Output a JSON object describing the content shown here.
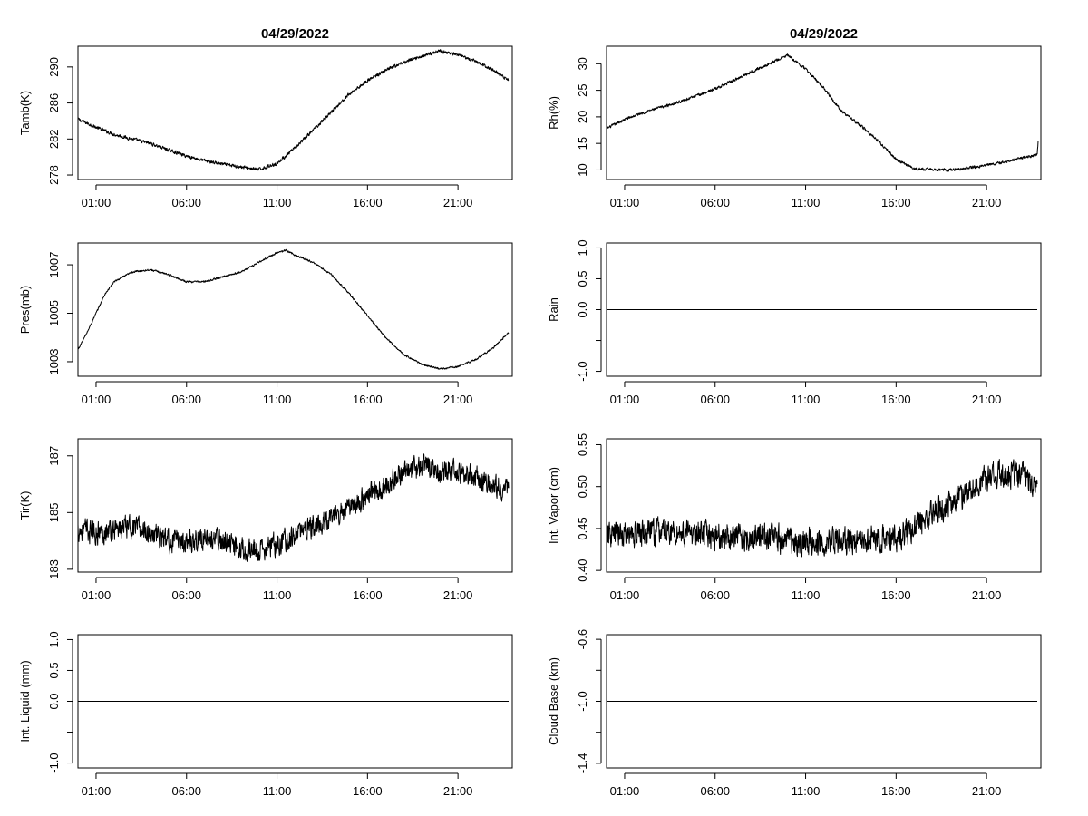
{
  "page": {
    "date_left": "04/29/2022",
    "date_right": "04/29/2022"
  },
  "colors": {
    "line": "#000000",
    "background": "#ffffff"
  },
  "chart_data": [
    {
      "id": "tamb",
      "type": "line",
      "title": "04/29/2022",
      "ylabel": "Tamb(K)",
      "xlabel": "",
      "xlim": [
        0,
        24
      ],
      "ylim": [
        277.5,
        292.3
      ],
      "x_ticks": [
        1,
        6,
        11,
        16,
        21
      ],
      "x_tick_labels": [
        "01:00",
        "06:00",
        "11:00",
        "16:00",
        "21:00"
      ],
      "y_ticks": [
        278,
        282,
        286,
        290
      ],
      "y_tick_labels": [
        "278",
        "282",
        "286",
        "290"
      ],
      "noise": 0.25,
      "series": [
        {
          "name": "Tamb(K)",
          "x": [
            0,
            1,
            2,
            3,
            4,
            5,
            6,
            7,
            8,
            9,
            10,
            11,
            12,
            13,
            14,
            15,
            16,
            17,
            18,
            19,
            20,
            21,
            22,
            23,
            23.8
          ],
          "values": [
            284.2,
            283.3,
            282.5,
            282.0,
            281.5,
            280.8,
            280.1,
            279.6,
            279.2,
            278.9,
            278.6,
            279.3,
            281.0,
            283.0,
            285.0,
            287.0,
            288.5,
            289.6,
            290.5,
            291.2,
            291.8,
            291.3,
            290.6,
            289.6,
            288.5
          ]
        }
      ]
    },
    {
      "id": "rh",
      "type": "line",
      "title": "04/29/2022",
      "ylabel": "Rh(%)",
      "xlabel": "",
      "xlim": [
        0,
        24
      ],
      "ylim": [
        8.2,
        33.3
      ],
      "x_ticks": [
        1,
        6,
        11,
        16,
        21
      ],
      "x_tick_labels": [
        "01:00",
        "06:00",
        "11:00",
        "16:00",
        "21:00"
      ],
      "y_ticks": [
        10,
        15,
        20,
        25,
        30
      ],
      "y_tick_labels": [
        "10",
        "15",
        "20",
        "25",
        "30"
      ],
      "noise": 0.35,
      "series": [
        {
          "name": "Rh(%)",
          "x": [
            0,
            1,
            2,
            3,
            4,
            5,
            6,
            7,
            8,
            9,
            10,
            11,
            12,
            13,
            14,
            15,
            16,
            17,
            18,
            19,
            20,
            21,
            22,
            23,
            23.8,
            23.85
          ],
          "values": [
            17.8,
            19.5,
            20.8,
            21.8,
            22.8,
            24.0,
            25.3,
            26.8,
            28.5,
            30.0,
            31.6,
            29.0,
            25.5,
            21.0,
            18.5,
            15.5,
            12.0,
            10.2,
            10.1,
            10.0,
            10.4,
            10.9,
            11.5,
            12.3,
            12.8,
            15.5
          ]
        }
      ]
    },
    {
      "id": "pres",
      "type": "line",
      "title": "",
      "ylabel": "Pres(mb)",
      "xlabel": "",
      "xlim": [
        0,
        24
      ],
      "ylim": [
        1002.4,
        1007.9
      ],
      "x_ticks": [
        1,
        6,
        11,
        16,
        21
      ],
      "x_tick_labels": [
        "01:00",
        "06:00",
        "11:00",
        "16:00",
        "21:00"
      ],
      "y_ticks": [
        1003,
        1005,
        1007
      ],
      "y_tick_labels": [
        "1003",
        "1005",
        "1007"
      ],
      "noise": 0.05,
      "series": [
        {
          "name": "Pres(mb)",
          "x": [
            0,
            0.5,
            1,
            1.5,
            2,
            3,
            4,
            5,
            6,
            7,
            8,
            9,
            10,
            11,
            11.5,
            12,
            13,
            14,
            15,
            16,
            17,
            18,
            19,
            20,
            21,
            22,
            23,
            23.8
          ],
          "values": [
            1003.5,
            1004.2,
            1005.0,
            1005.8,
            1006.3,
            1006.7,
            1006.8,
            1006.6,
            1006.3,
            1006.3,
            1006.5,
            1006.7,
            1007.1,
            1007.5,
            1007.6,
            1007.4,
            1007.1,
            1006.6,
            1005.8,
            1004.9,
            1004.0,
            1003.3,
            1002.9,
            1002.7,
            1002.8,
            1003.1,
            1003.6,
            1004.2
          ]
        }
      ]
    },
    {
      "id": "rain",
      "type": "line",
      "title": "",
      "ylabel": "Rain",
      "xlabel": "",
      "xlim": [
        0,
        24
      ],
      "ylim": [
        -1.08,
        1.08
      ],
      "x_ticks": [
        1,
        6,
        11,
        16,
        21
      ],
      "x_tick_labels": [
        "01:00",
        "06:00",
        "11:00",
        "16:00",
        "21:00"
      ],
      "y_ticks": [
        -1.0,
        -0.5,
        0.0,
        0.5,
        1.0
      ],
      "y_tick_labels": [
        "-1.0",
        "",
        "0.0",
        "0.5",
        "1.0"
      ],
      "noise": 0,
      "series": [
        {
          "name": "Rain",
          "x": [
            0,
            23.8
          ],
          "values": [
            0,
            0
          ]
        }
      ]
    },
    {
      "id": "tir",
      "type": "line",
      "title": "",
      "ylabel": "Tir(K)",
      "xlabel": "",
      "xlim": [
        0,
        24
      ],
      "ylim": [
        182.9,
        187.6
      ],
      "x_ticks": [
        1,
        6,
        11,
        16,
        21
      ],
      "x_tick_labels": [
        "01:00",
        "06:00",
        "11:00",
        "16:00",
        "21:00"
      ],
      "y_ticks": [
        183,
        185,
        187
      ],
      "y_tick_labels": [
        "183",
        "185",
        "187"
      ],
      "noise": 0.55,
      "series": [
        {
          "name": "Tir(K)",
          "x": [
            0,
            1,
            2,
            3,
            4,
            5,
            6,
            7,
            8,
            9,
            10,
            11,
            12,
            13,
            14,
            15,
            16,
            17,
            18,
            19,
            20,
            21,
            22,
            23,
            23.8
          ],
          "values": [
            184.4,
            184.3,
            184.4,
            184.5,
            184.3,
            184.0,
            184.0,
            184.1,
            184.0,
            183.8,
            183.6,
            183.9,
            184.2,
            184.5,
            184.8,
            185.2,
            185.6,
            186.0,
            186.4,
            186.6,
            186.5,
            186.4,
            186.3,
            186.0,
            185.8
          ]
        }
      ]
    },
    {
      "id": "vapor",
      "type": "line",
      "title": "",
      "ylabel": "Int. Vapor (cm)",
      "xlabel": "",
      "xlim": [
        0,
        24
      ],
      "ylim": [
        0.398,
        0.557
      ],
      "x_ticks": [
        1,
        6,
        11,
        16,
        21
      ],
      "x_tick_labels": [
        "01:00",
        "06:00",
        "11:00",
        "16:00",
        "21:00"
      ],
      "y_ticks": [
        0.4,
        0.45,
        0.5,
        0.55
      ],
      "y_tick_labels": [
        "0.40",
        "0.45",
        "0.50",
        "0.55"
      ],
      "noise": 0.022,
      "series": [
        {
          "name": "Int. Vapor (cm)",
          "x": [
            0,
            1,
            2,
            3,
            4,
            5,
            6,
            7,
            8,
            9,
            10,
            11,
            12,
            13,
            14,
            15,
            16,
            17,
            18,
            19,
            20,
            21,
            22,
            23,
            23.8
          ],
          "values": [
            0.443,
            0.442,
            0.444,
            0.447,
            0.445,
            0.443,
            0.441,
            0.44,
            0.44,
            0.439,
            0.436,
            0.435,
            0.436,
            0.436,
            0.435,
            0.437,
            0.44,
            0.45,
            0.468,
            0.482,
            0.495,
            0.508,
            0.516,
            0.512,
            0.502
          ]
        }
      ]
    },
    {
      "id": "liquid",
      "type": "line",
      "title": "",
      "ylabel": "Int. Liquid (mm)",
      "xlabel": "",
      "xlim": [
        0,
        24
      ],
      "ylim": [
        -1.08,
        1.08
      ],
      "x_ticks": [
        1,
        6,
        11,
        16,
        21
      ],
      "x_tick_labels": [
        "01:00",
        "06:00",
        "11:00",
        "16:00",
        "21:00"
      ],
      "y_ticks": [
        -1.0,
        -0.5,
        0.0,
        0.5,
        1.0
      ],
      "y_tick_labels": [
        "-1.0",
        "",
        "0.0",
        "0.5",
        "1.0"
      ],
      "noise": 0,
      "series": [
        {
          "name": "Int. Liquid (mm)",
          "x": [
            0,
            23.8
          ],
          "values": [
            0,
            0
          ]
        }
      ]
    },
    {
      "id": "cloudbase",
      "type": "line",
      "title": "",
      "ylabel": "Cloud Base (km)",
      "xlabel": "",
      "xlim": [
        0,
        24
      ],
      "ylim": [
        -1.43,
        -0.57
      ],
      "x_ticks": [
        1,
        6,
        11,
        16,
        21
      ],
      "x_tick_labels": [
        "01:00",
        "06:00",
        "11:00",
        "16:00",
        "21:00"
      ],
      "y_ticks": [
        -1.4,
        -1.2,
        -1.0,
        -0.8,
        -0.6
      ],
      "y_tick_labels": [
        "-1.4",
        "",
        "-1.0",
        "",
        "-0.6"
      ],
      "noise": 0,
      "series": [
        {
          "name": "Cloud Base (km)",
          "x": [
            0,
            23.8
          ],
          "values": [
            -1.0,
            -1.0
          ]
        }
      ]
    }
  ]
}
